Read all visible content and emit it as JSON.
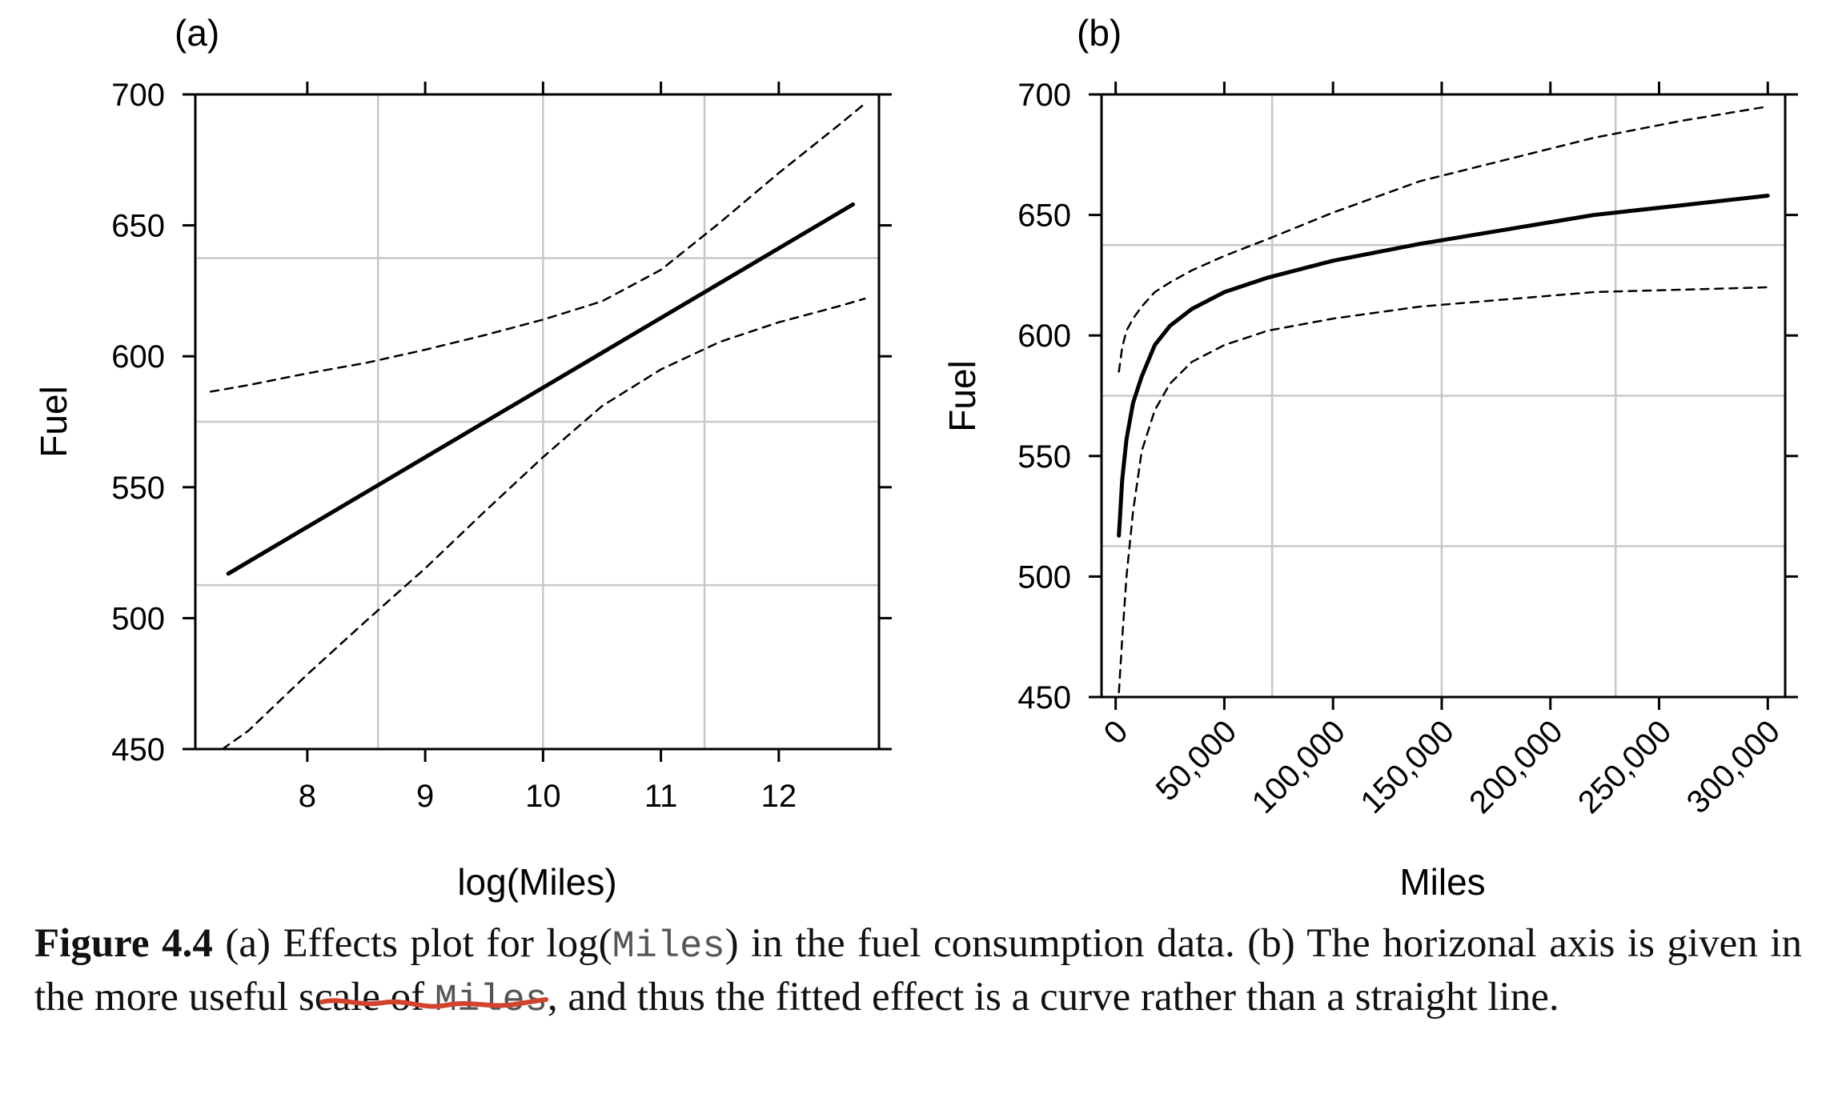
{
  "chart_data": [
    {
      "type": "line",
      "panel_label": "(a)",
      "xlabel": "log(Miles)",
      "ylabel": "Fuel",
      "xlim": [
        7.05,
        12.85
      ],
      "ylim": [
        450,
        700
      ],
      "x_ticks": [
        8,
        9,
        10,
        11,
        12
      ],
      "y_ticks": [
        450,
        500,
        550,
        600,
        650,
        700
      ],
      "grid": {
        "x": [
          8.6,
          10.0,
          11.37
        ],
        "y": [
          512.6,
          575.0,
          637.5
        ]
      },
      "series": [
        {
          "role": "fit",
          "style": "solid",
          "x": [
            7.33,
            12.63
          ],
          "y": [
            517,
            658
          ]
        },
        {
          "role": "upper",
          "style": "dashed",
          "x": [
            7.18,
            7.5,
            8.0,
            8.5,
            9.0,
            9.5,
            10.0,
            10.5,
            11.0,
            11.5,
            12.0,
            12.5,
            12.73
          ],
          "y": [
            586.5,
            589,
            593.5,
            597.5,
            602.5,
            608,
            614,
            621,
            633,
            651,
            670,
            688,
            696.5
          ]
        },
        {
          "role": "lower",
          "style": "dashed",
          "x": [
            7.28,
            7.5,
            8.0,
            8.5,
            9.0,
            9.5,
            10.0,
            10.5,
            11.0,
            11.5,
            12.0,
            12.5,
            12.73
          ],
          "y": [
            450,
            457,
            478.5,
            499,
            519,
            540.5,
            561.5,
            581,
            595,
            605.5,
            613,
            619,
            622
          ]
        }
      ]
    },
    {
      "type": "line",
      "panel_label": "(b)",
      "xlabel": "Miles",
      "ylabel": "Fuel",
      "xlim": [
        -6500,
        308000
      ],
      "ylim": [
        450,
        700
      ],
      "x_ticks": [
        0,
        50000,
        100000,
        150000,
        200000,
        250000,
        300000
      ],
      "x_tick_labels": [
        "0",
        "50,000",
        "100,000",
        "150,000",
        "200,000",
        "250,000",
        "300,000"
      ],
      "y_ticks": [
        450,
        500,
        550,
        600,
        650,
        700
      ],
      "grid": {
        "x": [
          72000,
          150000,
          230000
        ],
        "y": [
          512.6,
          575.0,
          637.5
        ]
      },
      "series": [
        {
          "role": "fit",
          "style": "solid",
          "x": [
            1500,
            3000,
            5000,
            8000,
            12000,
            18000,
            25000,
            35000,
            50000,
            70000,
            100000,
            140000,
            180000,
            220000,
            260000,
            300000
          ],
          "y": [
            517,
            540,
            557,
            572,
            583,
            596,
            604,
            611,
            618,
            624,
            631,
            638,
            644,
            650,
            654,
            658
          ]
        },
        {
          "role": "upper",
          "style": "dashed",
          "x": [
            1500,
            3000,
            5000,
            8000,
            12000,
            18000,
            25000,
            35000,
            50000,
            70000,
            100000,
            140000,
            180000,
            220000,
            260000,
            300000
          ],
          "y": [
            585,
            595,
            602,
            607,
            612,
            618,
            622,
            627,
            633,
            640,
            651,
            664,
            673,
            682,
            689,
            695
          ]
        },
        {
          "role": "lower",
          "style": "dashed",
          "x": [
            1500,
            3000,
            5000,
            8000,
            12000,
            18000,
            25000,
            35000,
            50000,
            70000,
            100000,
            140000,
            180000,
            220000,
            260000,
            300000
          ],
          "y": [
            452,
            474,
            500,
            527,
            552,
            569,
            580,
            589,
            596,
            602,
            607,
            612,
            615,
            618,
            619,
            620
          ]
        }
      ]
    }
  ],
  "caption": {
    "figure_label": "Figure 4.4",
    "part1": "(a) Effects plot for log(",
    "code1": "Miles",
    "part2": ") in the fuel consumption data. (b) The horizonal axis is given in the more useful scale of ",
    "code2": "Miles",
    "part3": ", and thus the fitted effect is a curve rather than a straight line."
  },
  "colors": {
    "line": "#000000",
    "grid": "#c8c8c8",
    "annotation": "#d2432d"
  }
}
